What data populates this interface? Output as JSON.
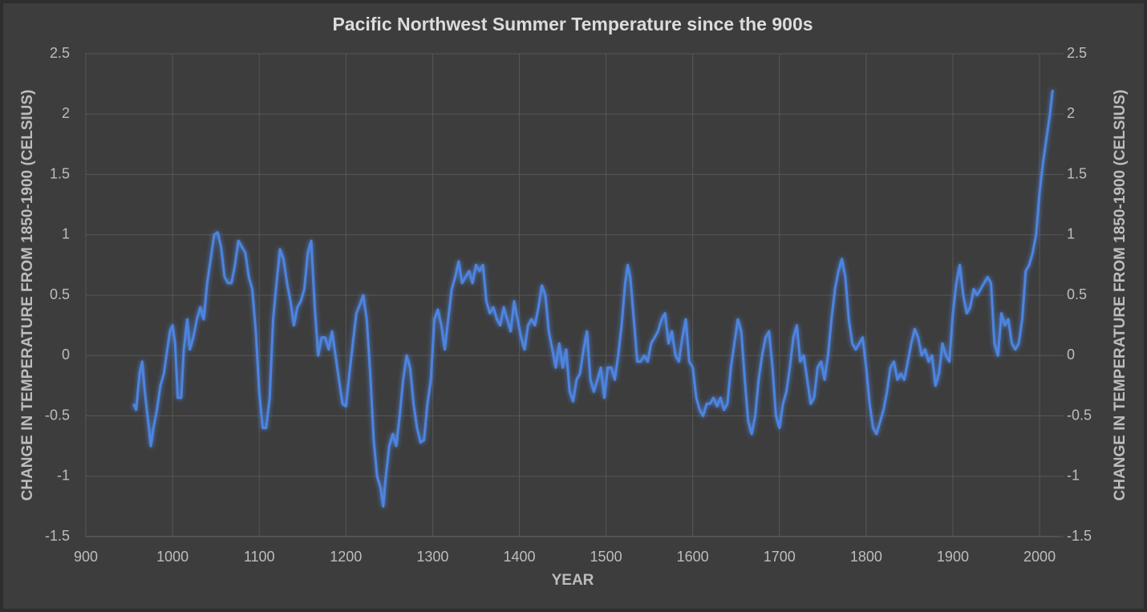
{
  "chart_data": {
    "type": "line",
    "title": "Pacific Northwest Summer Temperature since the 900s",
    "xlabel": "YEAR",
    "ylabel": "CHANGE IN TEMPERATURE FROM 1850-1900 (CELSIUS)",
    "y2label": "CHANGE IN TEMPERATURE FROM 1850-1900 (CELSIUS)",
    "color": "#4d84e0",
    "grid": true,
    "xlim": [
      900,
      2024
    ],
    "xticks": [
      900,
      1000,
      1100,
      1200,
      1300,
      1400,
      1500,
      1600,
      1700,
      1800,
      1900,
      2000
    ],
    "ylim": [
      -1.5,
      2.5
    ],
    "yticks": [
      -1.5,
      -1,
      -0.5,
      0,
      0.5,
      1,
      1.5,
      2,
      2.5
    ],
    "y2lim": [
      -1.5,
      2.5
    ],
    "y2ticks": [
      -1.5,
      -1,
      -0.5,
      0,
      0.5,
      1,
      1.5,
      2,
      2.5
    ],
    "x": [
      955,
      958,
      962,
      965,
      968,
      972,
      975,
      978,
      982,
      986,
      990,
      994,
      997,
      1000,
      1003,
      1006,
      1010,
      1013,
      1017,
      1020,
      1024,
      1028,
      1032,
      1036,
      1040,
      1044,
      1048,
      1052,
      1056,
      1060,
      1064,
      1068,
      1072,
      1076,
      1080,
      1084,
      1088,
      1092,
      1096,
      1100,
      1104,
      1108,
      1112,
      1116,
      1120,
      1124,
      1128,
      1132,
      1136,
      1140,
      1144,
      1148,
      1152,
      1156,
      1160,
      1164,
      1168,
      1172,
      1176,
      1180,
      1184,
      1188,
      1192,
      1196,
      1200,
      1204,
      1208,
      1212,
      1216,
      1220,
      1224,
      1228,
      1232,
      1236,
      1240,
      1243,
      1246,
      1250,
      1254,
      1258,
      1262,
      1266,
      1270,
      1274,
      1278,
      1282,
      1286,
      1290,
      1294,
      1298,
      1302,
      1306,
      1310,
      1314,
      1318,
      1322,
      1326,
      1330,
      1334,
      1338,
      1342,
      1346,
      1350,
      1354,
      1358,
      1362,
      1366,
      1370,
      1374,
      1378,
      1382,
      1386,
      1390,
      1394,
      1398,
      1402,
      1406,
      1410,
      1414,
      1418,
      1422,
      1426,
      1430,
      1434,
      1438,
      1442,
      1446,
      1450,
      1454,
      1458,
      1462,
      1466,
      1470,
      1474,
      1478,
      1482,
      1486,
      1490,
      1494,
      1498,
      1502,
      1506,
      1510,
      1514,
      1518,
      1522,
      1525,
      1528,
      1532,
      1536,
      1540,
      1544,
      1548,
      1552,
      1556,
      1560,
      1564,
      1568,
      1572,
      1576,
      1580,
      1584,
      1588,
      1592,
      1596,
      1600,
      1604,
      1608,
      1612,
      1616,
      1620,
      1624,
      1628,
      1632,
      1636,
      1640,
      1644,
      1648,
      1652,
      1656,
      1660,
      1664,
      1668,
      1672,
      1676,
      1680,
      1684,
      1688,
      1692,
      1696,
      1700,
      1704,
      1708,
      1712,
      1716,
      1720,
      1724,
      1728,
      1732,
      1736,
      1740,
      1744,
      1748,
      1752,
      1756,
      1760,
      1764,
      1768,
      1772,
      1776,
      1780,
      1784,
      1788,
      1792,
      1796,
      1800,
      1804,
      1808,
      1812,
      1816,
      1820,
      1824,
      1828,
      1832,
      1836,
      1840,
      1844,
      1848,
      1852,
      1856,
      1860,
      1864,
      1868,
      1872,
      1876,
      1880,
      1884,
      1888,
      1892,
      1896,
      1900,
      1904,
      1908,
      1912,
      1916,
      1920,
      1924,
      1928,
      1932,
      1936,
      1940,
      1944,
      1948,
      1952,
      1956,
      1960,
      1964,
      1968,
      1972,
      1976,
      1980,
      1984,
      1988,
      1992,
      1996,
      2000,
      2004,
      2008,
      2012,
      2015
    ],
    "values": [
      -0.4,
      -0.45,
      -0.15,
      -0.05,
      -0.3,
      -0.55,
      -0.75,
      -0.6,
      -0.45,
      -0.25,
      -0.15,
      0.05,
      0.2,
      0.25,
      0.1,
      -0.35,
      -0.35,
      0.05,
      0.3,
      0.05,
      0.15,
      0.3,
      0.4,
      0.3,
      0.6,
      0.8,
      1.0,
      1.02,
      0.9,
      0.65,
      0.6,
      0.6,
      0.75,
      0.95,
      0.9,
      0.85,
      0.65,
      0.55,
      0.2,
      -0.3,
      -0.6,
      -0.6,
      -0.35,
      0.3,
      0.6,
      0.88,
      0.8,
      0.6,
      0.45,
      0.25,
      0.4,
      0.45,
      0.55,
      0.85,
      0.95,
      0.4,
      0.0,
      0.15,
      0.15,
      0.05,
      0.2,
      0.0,
      -0.2,
      -0.4,
      -0.42,
      -0.15,
      0.1,
      0.35,
      0.42,
      0.5,
      0.3,
      -0.15,
      -0.7,
      -1.0,
      -1.1,
      -1.25,
      -1.0,
      -0.75,
      -0.65,
      -0.75,
      -0.5,
      -0.2,
      0.0,
      -0.1,
      -0.4,
      -0.6,
      -0.72,
      -0.7,
      -0.4,
      -0.2,
      0.3,
      0.38,
      0.25,
      0.05,
      0.3,
      0.55,
      0.65,
      0.78,
      0.6,
      0.65,
      0.7,
      0.6,
      0.75,
      0.7,
      0.75,
      0.45,
      0.35,
      0.4,
      0.3,
      0.25,
      0.4,
      0.3,
      0.2,
      0.45,
      0.3,
      0.15,
      0.05,
      0.25,
      0.3,
      0.25,
      0.4,
      0.58,
      0.5,
      0.2,
      0.05,
      -0.1,
      0.1,
      -0.1,
      0.05,
      -0.3,
      -0.38,
      -0.2,
      -0.15,
      0.05,
      0.2,
      -0.2,
      -0.3,
      -0.2,
      -0.1,
      -0.35,
      -0.1,
      -0.1,
      -0.2,
      0.0,
      0.25,
      0.6,
      0.75,
      0.65,
      0.3,
      -0.05,
      -0.05,
      0.0,
      -0.05,
      0.1,
      0.15,
      0.2,
      0.3,
      0.35,
      0.1,
      0.2,
      0.0,
      -0.05,
      0.15,
      0.3,
      -0.05,
      -0.1,
      -0.35,
      -0.45,
      -0.5,
      -0.4,
      -0.4,
      -0.35,
      -0.42,
      -0.35,
      -0.45,
      -0.4,
      -0.1,
      0.1,
      0.3,
      0.2,
      -0.2,
      -0.55,
      -0.65,
      -0.5,
      -0.2,
      0.0,
      0.15,
      0.2,
      -0.1,
      -0.5,
      -0.6,
      -0.4,
      -0.3,
      -0.1,
      0.15,
      0.25,
      -0.05,
      0.0,
      -0.2,
      -0.4,
      -0.35,
      -0.1,
      -0.05,
      -0.2,
      0.0,
      0.3,
      0.55,
      0.7,
      0.8,
      0.65,
      0.3,
      0.1,
      0.05,
      0.1,
      0.15,
      -0.1,
      -0.4,
      -0.6,
      -0.65,
      -0.55,
      -0.45,
      -0.3,
      -0.1,
      -0.05,
      -0.2,
      -0.15,
      -0.2,
      -0.05,
      0.1,
      0.22,
      0.15,
      0.0,
      0.05,
      -0.05,
      0.0,
      -0.25,
      -0.15,
      0.1,
      0.0,
      -0.05,
      0.35,
      0.6,
      0.75,
      0.5,
      0.35,
      0.4,
      0.55,
      0.5,
      0.55,
      0.6,
      0.65,
      0.6,
      0.1,
      0.0,
      0.35,
      0.25,
      0.3,
      0.1,
      0.05,
      0.1,
      0.3,
      0.7,
      0.75,
      0.85,
      1.0,
      1.35,
      1.6,
      1.8,
      2.0,
      2.2
    ]
  }
}
